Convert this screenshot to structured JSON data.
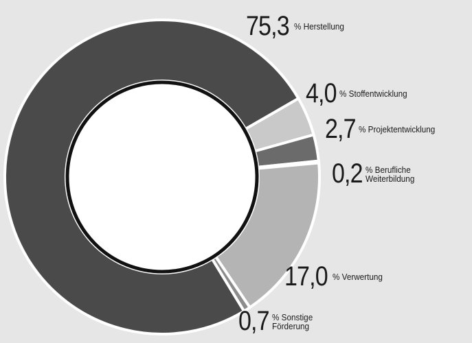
{
  "chart_data": {
    "type": "donut",
    "categories": [
      "Stoffentwicklung",
      "Projektentwicklung",
      "Berufliche Weiterbildung",
      "Verwertung",
      "Sonstige Förderung",
      "Herstellung"
    ],
    "values": [
      4.0,
      2.7,
      0.2,
      17.0,
      0.7,
      75.3
    ],
    "value_labels": [
      "4,0",
      "2,7",
      "0,2",
      "17,0",
      "0,7",
      "75,3"
    ],
    "unit": "%",
    "colors": [
      "#c9c9c9",
      "#6b6b6b",
      "#5e5e5e",
      "#b4b4b4",
      "#8c8c8c",
      "#4a4a4a"
    ]
  }
}
